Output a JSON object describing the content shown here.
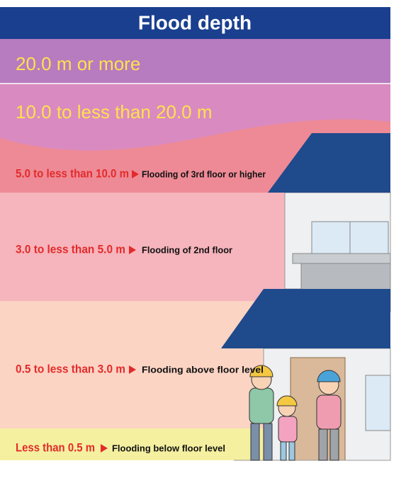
{
  "header": {
    "title": "Flood depth"
  },
  "levels": [
    {
      "range": "20.0 m or more"
    },
    {
      "range": "10.0 to less than 20.0 m"
    },
    {
      "range": "5.0 to less than 10.0 m",
      "description": "Flooding of 3rd floor or higher"
    },
    {
      "range": "3.0 to less than 5.0 m",
      "description": "Flooding of 2nd floor"
    },
    {
      "range": "0.5 to less than 3.0 m",
      "description": "Flooding above floor level"
    },
    {
      "range": "Less than 0.5 m",
      "description": "Flooding below floor level"
    }
  ]
}
